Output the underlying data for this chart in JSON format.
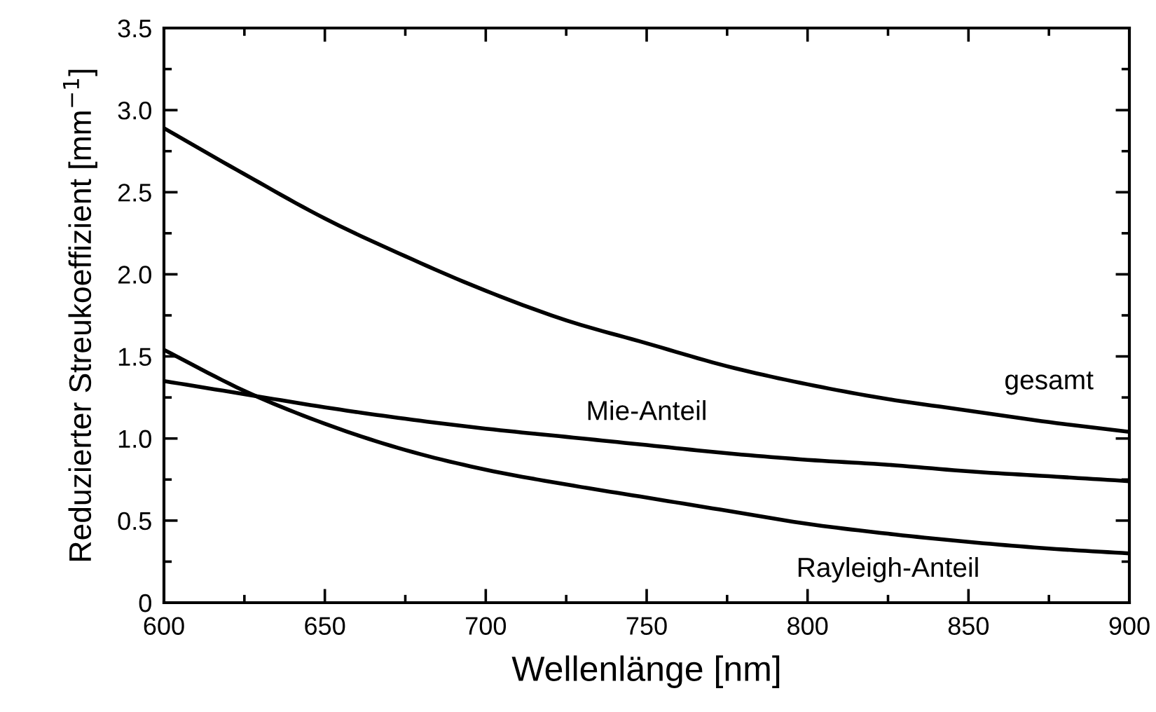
{
  "chart_data": {
    "type": "line",
    "xlabel": "Wellenlänge [nm]",
    "ylabel": "Reduzierter Streukoeffizient [mm$^{−1}$]",
    "x": [
      600,
      625,
      650,
      675,
      700,
      725,
      750,
      775,
      800,
      825,
      850,
      875,
      900
    ],
    "series": [
      {
        "name": "gesamt",
        "color": "#000000",
        "values": [
          2.89,
          2.61,
          2.34,
          2.11,
          1.9,
          1.72,
          1.58,
          1.44,
          1.33,
          1.24,
          1.17,
          1.1,
          1.04
        ]
      },
      {
        "name": "Mie-Anteil",
        "color": "#000000",
        "values": [
          1.35,
          1.27,
          1.19,
          1.12,
          1.06,
          1.01,
          0.96,
          0.91,
          0.87,
          0.84,
          0.8,
          0.77,
          0.74
        ]
      },
      {
        "name": "Rayleigh-Anteil",
        "color": "#000000",
        "values": [
          1.54,
          1.29,
          1.09,
          0.93,
          0.81,
          0.72,
          0.64,
          0.56,
          0.48,
          0.42,
          0.37,
          0.33,
          0.3
        ]
      }
    ],
    "xlim": [
      600,
      900
    ],
    "xticks": [
      600,
      650,
      700,
      750,
      800,
      850,
      900
    ],
    "ylim": [
      0,
      3.5
    ],
    "yticks": [
      {
        "value": 0,
        "label": "0"
      },
      0.5,
      {
        "value": 1,
        "label": "1.0"
      },
      1.5,
      {
        "value": 2,
        "label": "2.0"
      },
      2.5,
      {
        "value": 3,
        "label": "3.0"
      },
      3.5
    ],
    "grid": false,
    "marker": "none",
    "line_style": "solid"
  }
}
